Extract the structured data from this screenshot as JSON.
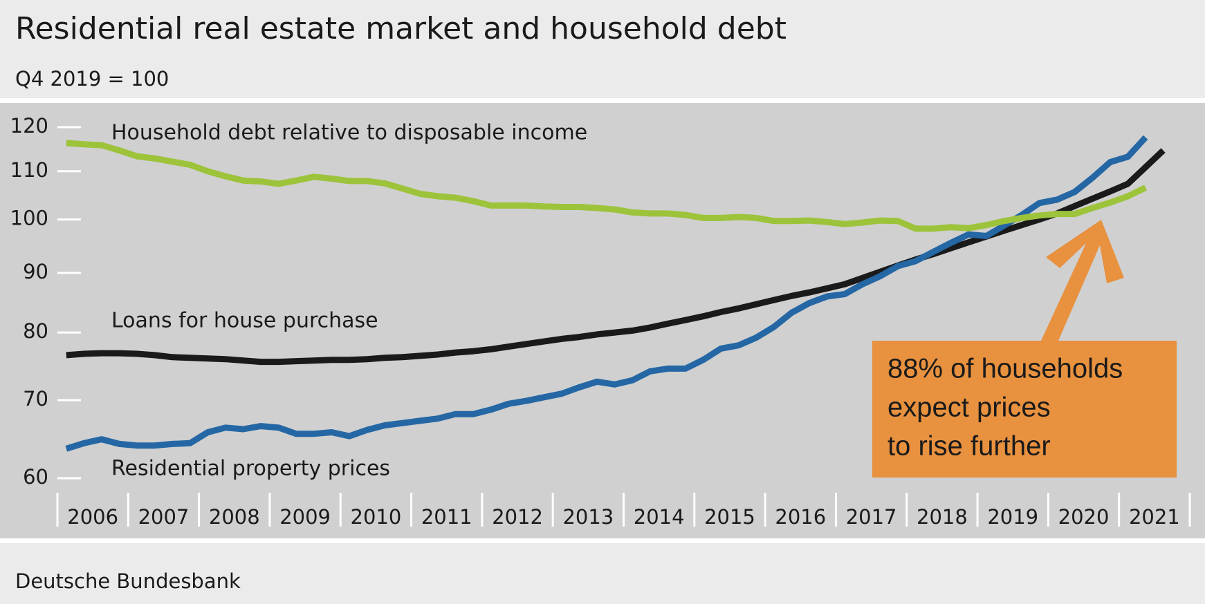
{
  "chart_data": {
    "type": "line",
    "title": "Residential real estate market and household debt",
    "subtitle": "Q4 2019 = 100",
    "source": "Deutsche Bundesbank",
    "yscale": "log",
    "ylim": [
      60,
      120
    ],
    "yticks": [
      60,
      70,
      80,
      90,
      100,
      110,
      120
    ],
    "xlim": [
      2006,
      2022
    ],
    "xticks": [
      {
        "value": 2006,
        "label": "2006"
      },
      {
        "value": 2007,
        "label": "2007"
      },
      {
        "value": 2008,
        "label": "2008"
      },
      {
        "value": 2009,
        "label": "2009"
      },
      {
        "value": 2010,
        "label": "2010"
      },
      {
        "value": 2011,
        "label": "2011"
      },
      {
        "value": 2012,
        "label": "2012"
      },
      {
        "value": 2013,
        "label": "2013"
      },
      {
        "value": 2014,
        "label": "2014"
      },
      {
        "value": 2015,
        "label": "2015"
      },
      {
        "value": 2016,
        "label": "2016"
      },
      {
        "value": 2017,
        "label": "2017"
      },
      {
        "value": 2018,
        "label": "2018"
      },
      {
        "value": 2019,
        "label": "2019"
      },
      {
        "value": 2020,
        "label": "2020"
      },
      {
        "value": 2021,
        "label": "2021"
      }
    ],
    "x": [
      2006.125,
      2006.375,
      2006.625,
      2006.875,
      2007.125,
      2007.375,
      2007.625,
      2007.875,
      2008.125,
      2008.375,
      2008.625,
      2008.875,
      2009.125,
      2009.375,
      2009.625,
      2009.875,
      2010.125,
      2010.375,
      2010.625,
      2010.875,
      2011.125,
      2011.375,
      2011.625,
      2011.875,
      2012.125,
      2012.375,
      2012.625,
      2012.875,
      2013.125,
      2013.375,
      2013.625,
      2013.875,
      2014.125,
      2014.375,
      2014.625,
      2014.875,
      2015.125,
      2015.375,
      2015.625,
      2015.875,
      2016.125,
      2016.375,
      2016.625,
      2016.875,
      2017.125,
      2017.375,
      2017.625,
      2017.875,
      2018.125,
      2018.375,
      2018.625,
      2018.875,
      2019.125,
      2019.375,
      2019.625,
      2019.875,
      2020.125,
      2020.375,
      2020.625,
      2020.875,
      2021.125,
      2021.375,
      2021.625
    ],
    "series": [
      {
        "name": "Household debt relative to disposable income",
        "color": "#9dc33b",
        "values": [
          116.3,
          116,
          115.8,
          114.6,
          113.3,
          112.8,
          112.1,
          111.4,
          110,
          108.9,
          108,
          107.8,
          107.3,
          108,
          108.8,
          108.4,
          107.9,
          107.9,
          107.4,
          106.3,
          105.2,
          104.7,
          104.4,
          103.7,
          102.8,
          102.8,
          102.8,
          102.6,
          102.5,
          102.5,
          102.3,
          102,
          101.4,
          101.2,
          101.2,
          100.9,
          100.3,
          100.3,
          100.5,
          100.3,
          99.7,
          99.7,
          99.8,
          99.5,
          99.1,
          99.4,
          99.8,
          99.7,
          98.2,
          98.2,
          98.5,
          98.3,
          98.9,
          99.7,
          100.3,
          100.8,
          101.1,
          101.1,
          102.3,
          103.4,
          104.7,
          106.5,
          null
        ]
      },
      {
        "name": "Loans for house purchase",
        "color": "#1a1a1a",
        "values": [
          76.5,
          76.7,
          76.8,
          76.8,
          76.7,
          76.5,
          76.2,
          76.1,
          76.0,
          75.9,
          75.7,
          75.5,
          75.5,
          75.6,
          75.7,
          75.8,
          75.8,
          75.9,
          76.1,
          76.2,
          76.4,
          76.6,
          76.9,
          77.1,
          77.4,
          77.8,
          78.2,
          78.6,
          79.0,
          79.3,
          79.7,
          80.0,
          80.3,
          80.8,
          81.4,
          82.0,
          82.6,
          83.3,
          83.9,
          84.6,
          85.3,
          86.0,
          86.6,
          87.3,
          88.0,
          89.1,
          90.2,
          91.3,
          92.4,
          93.4,
          94.5,
          95.6,
          96.7,
          97.8,
          98.9,
          100.0,
          101.2,
          102.7,
          104.2,
          105.7,
          107.3,
          110.9,
          114.6
        ]
      },
      {
        "name": "Residential property prices",
        "color": "#2467a4",
        "values": [
          63.6,
          64.3,
          64.8,
          64.2,
          64,
          64,
          64.2,
          64.3,
          65.7,
          66.3,
          66.1,
          66.5,
          66.3,
          65.5,
          65.5,
          65.7,
          65.2,
          66,
          66.6,
          66.9,
          67.2,
          67.5,
          68.1,
          68.1,
          68.7,
          69.5,
          69.9,
          70.4,
          70.9,
          71.8,
          72.6,
          72.2,
          72.8,
          74.1,
          74.5,
          74.5,
          75.8,
          77.5,
          78.0,
          79.2,
          80.9,
          83.2,
          84.8,
          85.9,
          86.3,
          88.0,
          89.4,
          91.2,
          92.1,
          93.8,
          95.5,
          97.1,
          96.8,
          98.8,
          100.9,
          103.3,
          104.0,
          105.6,
          108.6,
          112,
          113.2,
          117.6,
          null
        ]
      }
    ],
    "annotation": [
      "88% of households",
      "expect prices",
      "to rise further"
    ]
  }
}
